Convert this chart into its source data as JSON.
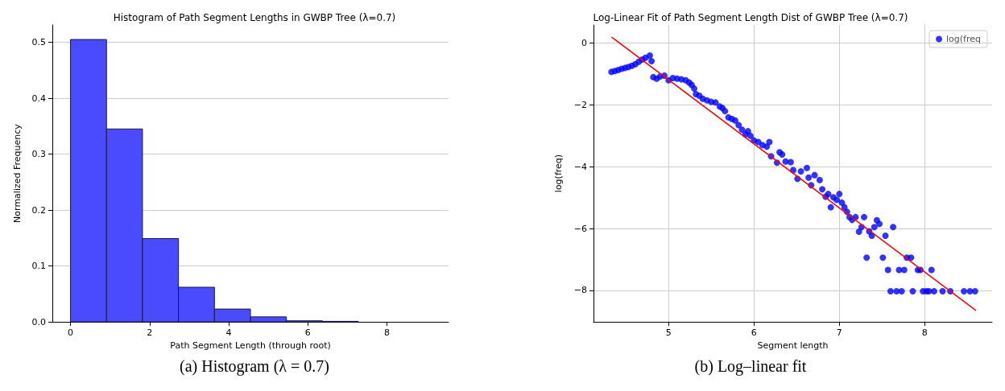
{
  "chart_data": [
    {
      "type": "histogram",
      "title": "Histogram of Path Segment Lengths in GWBP Tree (λ=0.7)",
      "xlabel": "Path Segment Length (through root)",
      "ylabel": "Normalized Frequency",
      "bins": [
        0,
        0.91,
        1.82,
        2.73,
        3.64,
        4.55,
        5.46,
        6.37,
        7.28,
        8.19,
        9.1
      ],
      "values": [
        0.505,
        0.345,
        0.149,
        0.062,
        0.023,
        0.009,
        0.002,
        0.001,
        0,
        0
      ],
      "color": "#4a4aff",
      "xlim": [
        -0.46,
        9.56
      ],
      "ylim": [
        0,
        0.531
      ],
      "xticks": [
        0,
        2,
        4,
        6,
        8
      ],
      "yticks": [
        {
          "value": 0,
          "label": "0.0"
        },
        {
          "value": 0.1,
          "label": "0.1"
        },
        {
          "value": 0.2,
          "label": "0.2"
        },
        {
          "value": 0.3,
          "label": "0.3"
        },
        {
          "value": 0.4,
          "label": "0.4"
        },
        {
          "value": 0.5,
          "label": "0.5"
        }
      ],
      "grid": "y",
      "annotations": [
        "(a) Histogram (λ = 0.7)"
      ]
    },
    {
      "type": "scatter",
      "title": "Log-Linear Fit of Path Segment Length Dist of GWBP Tree (λ=0.7)",
      "xlabel": "Segment length",
      "ylabel": "log(freq)",
      "xlim": [
        4.12,
        8.79
      ],
      "ylim": [
        -9.02,
        0.59
      ],
      "xticks": [
        5,
        6,
        7,
        8
      ],
      "yticks": [
        {
          "value": -8,
          "label": "−8"
        },
        {
          "value": -6,
          "label": "−6"
        },
        {
          "value": -4,
          "label": "−4"
        },
        {
          "value": -2,
          "label": "−2"
        },
        0
      ],
      "grid": true,
      "legend": "top right",
      "marker": "circle",
      "annotations": [
        "(b) Log–linear fit"
      ],
      "series": [
        {
          "name": "log(freq",
          "color": "#0000ff",
          "x": [
            4.33,
            4.37,
            4.41,
            4.45,
            4.49,
            4.53,
            4.57,
            4.61,
            4.65,
            4.69,
            4.73,
            4.78,
            4.8,
            4.82,
            4.86,
            4.9,
            4.95,
            5,
            5.05,
            5.1,
            5.15,
            5.2,
            5.24,
            5.27,
            5.3,
            5.32,
            5.36,
            5.4,
            5.45,
            5.5,
            5.55,
            5.6,
            5.63,
            5.66,
            5.7,
            5.74,
            5.78,
            5.82,
            5.86,
            5.9,
            5.93,
            5.96,
            6,
            6.05,
            6.1,
            6.15,
            6.18,
            6.2,
            6.27,
            6.3,
            6.33,
            6.37,
            6.43,
            6.46,
            6.51,
            6.55,
            6.62,
            6.64,
            6.71,
            6.67,
            6.77,
            6.8,
            6.84,
            6.87,
            6.9,
            6.93,
            6.97,
            7,
            7.03,
            7.06,
            7.09,
            7.12,
            7.15,
            7.19,
            7.23,
            7.26,
            7.29,
            7.32,
            7.35,
            7.38,
            7.41,
            7.44,
            7.47,
            7.51,
            7.54,
            7.57,
            7.6,
            7.63,
            7.67,
            7.7,
            7.73,
            7.76,
            7.79,
            7.84,
            7.86,
            7.92,
            7.95,
            7.98,
            8.02,
            8.05,
            8.08,
            8.11,
            8.21,
            8.3,
            8.46,
            8.53,
            8.59
          ],
          "values": [
            -0.93,
            -0.9,
            -0.87,
            -0.83,
            -0.8,
            -0.77,
            -0.73,
            -0.68,
            -0.6,
            -0.53,
            -0.47,
            -0.4,
            -0.58,
            -1.1,
            -1.15,
            -1.08,
            -1.05,
            -1.2,
            -1.13,
            -1.15,
            -1.17,
            -1.2,
            -1.27,
            -1.35,
            -1.47,
            -1.65,
            -1.7,
            -1.8,
            -1.85,
            -1.9,
            -1.92,
            -2.05,
            -2.1,
            -2.2,
            -2.4,
            -2.45,
            -2.5,
            -2.65,
            -2.8,
            -2.95,
            -2.85,
            -3,
            -3.15,
            -3.2,
            -3.3,
            -3.35,
            -3.2,
            -3.66,
            -3.87,
            -3.53,
            -3.6,
            -3.83,
            -3.85,
            -4.11,
            -4.39,
            -4.15,
            -4.04,
            -4.35,
            -4.27,
            -4.6,
            -4.43,
            -4.73,
            -4.97,
            -4.88,
            -5.31,
            -4.99,
            -5.07,
            -4.88,
            -5.16,
            -5.31,
            -5.46,
            -5.63,
            -5.72,
            -5.63,
            -6.1,
            -5.95,
            -5.63,
            -6.94,
            -6.09,
            -6.23,
            -5.95,
            -5.73,
            -5.85,
            -6.94,
            -6.23,
            -7.34,
            -8.03,
            -5.95,
            -8.03,
            -7.34,
            -8.03,
            -7.34,
            -6.94,
            -6.94,
            -8.03,
            -7.34,
            -7.34,
            -8.03,
            -8.03,
            -8.03,
            -7.34,
            -8.03,
            -8.03,
            -8.03,
            -8.03,
            -8.03,
            -8.03
          ]
        },
        {
          "type": "line",
          "color": "#ff0000",
          "x": [
            4.33,
            8.6
          ],
          "values": [
            0.2,
            -8.65
          ],
          "marker": "none"
        }
      ]
    }
  ]
}
